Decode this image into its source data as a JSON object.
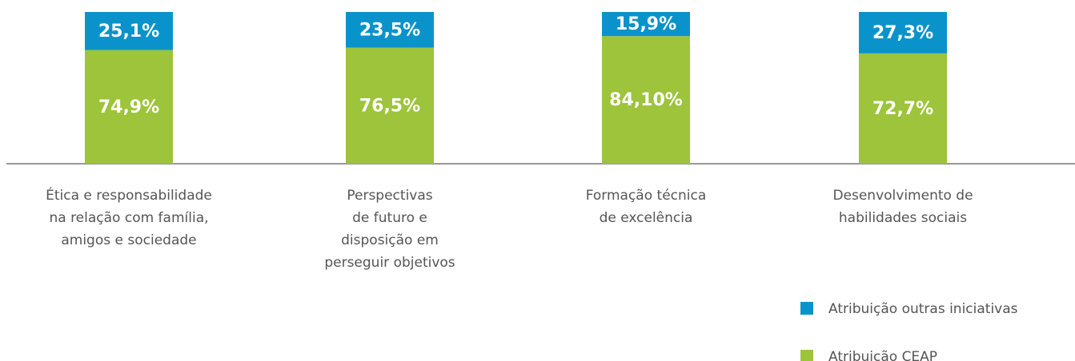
{
  "chart_data": {
    "type": "stacked-bar",
    "categories": [
      "Ética e responsabilidade\nna relação com família,\namigos e sociedade",
      "Perspectivas\nde futuro e\ndisposição em\nperseguir objetivos",
      "Formação técnica\nde excelência",
      "Desenvolvimento de\nhabilidades sociais"
    ],
    "series": [
      {
        "name": "Atribuição outras iniciativas",
        "color": "#0a93cb",
        "values": [
          25.1,
          23.5,
          15.9,
          27.3
        ],
        "value_labels": [
          "25,1%",
          "23,5%",
          "15,9%",
          "27,3%"
        ]
      },
      {
        "name": "Atribuição CEAP",
        "color": "#9dc43a",
        "values": [
          74.9,
          76.5,
          84.1,
          72.7
        ],
        "value_labels": [
          "74,9%",
          "76,5%",
          "84,10%",
          "72,7%"
        ]
      }
    ],
    "ylim": [
      0,
      100
    ],
    "legend": "bottom-right"
  }
}
